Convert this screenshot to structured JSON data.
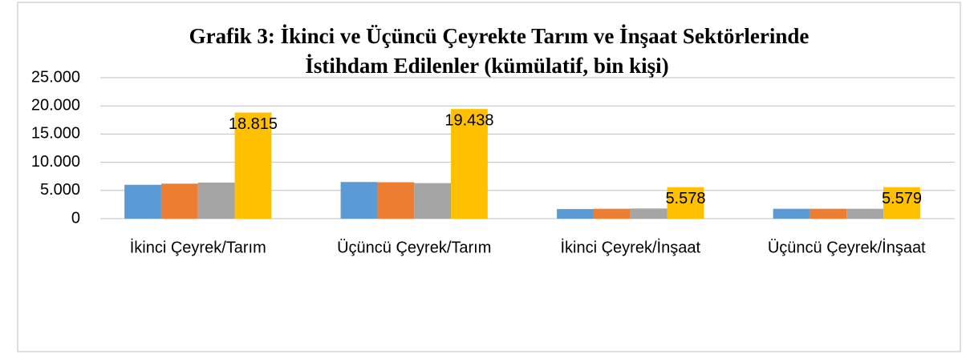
{
  "chart_data": {
    "type": "bar",
    "title": [
      "Grafik 3: İkinci ve Üçüncü Çeyrekte Tarım ve İnşaat Sektörlerinde",
      "İstihdam Edilenler (kümülatif, bin kişi)"
    ],
    "categories": [
      "İkinci Çeyrek/Tarım",
      "Üçüncü Çeyrek/Tarım",
      "İkinci Çeyrek/İnşaat",
      "Üçüncü Çeyrek/İnşaat"
    ],
    "series": [
      {
        "color": "#5b9bd5",
        "values": [
          6000,
          6500,
          1700,
          1750
        ]
      },
      {
        "color": "#ed7d31",
        "values": [
          6200,
          6450,
          1750,
          1750
        ]
      },
      {
        "color": "#a5a5a5",
        "values": [
          6400,
          6300,
          1800,
          1750
        ]
      },
      {
        "color": "#ffc000",
        "values": [
          18815,
          19438,
          5578,
          5579
        ],
        "value_labels": [
          "18.815",
          "19.438",
          "5.578",
          "5.579"
        ]
      }
    ],
    "ylim": [
      0,
      25000
    ],
    "yticks": [
      0,
      {
        "value": 5000,
        "label": "5.000"
      },
      {
        "value": 10000,
        "label": "10.000"
      },
      {
        "value": 15000,
        "label": "15.000"
      },
      {
        "value": 20000,
        "label": "20.000"
      },
      {
        "value": 25000,
        "label": "25.000"
      }
    ],
    "grid": true
  }
}
